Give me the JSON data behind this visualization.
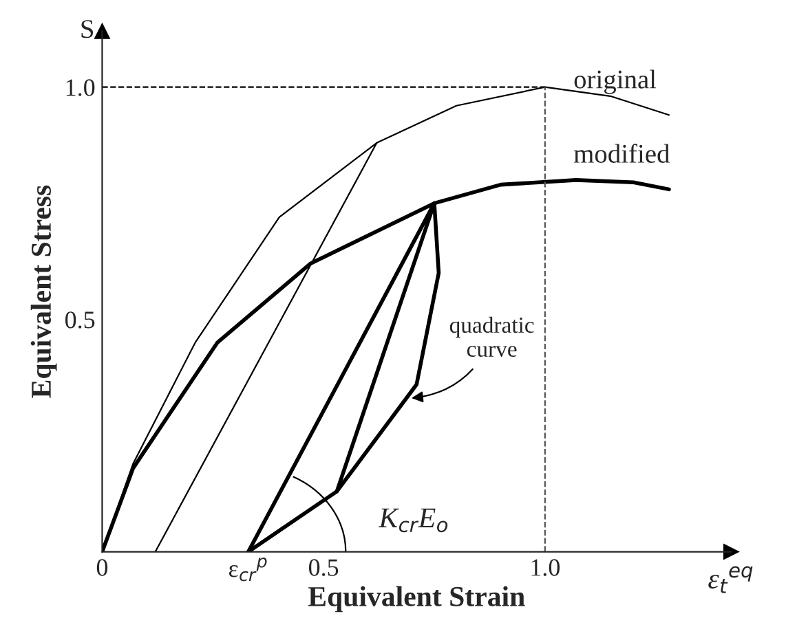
{
  "chart_data": {
    "type": "line",
    "xlabel": "Equivalent Strain",
    "ylabel": "Equivalent Stress",
    "xlim": [
      0,
      1.42
    ],
    "ylim": [
      0,
      1.12
    ],
    "xticks": [
      0,
      {
        "value": 0.33,
        "label": "ε$_{cr}$$^{p}$"
      },
      0.5,
      {
        "value": 1.0,
        "label": "1.0"
      }
    ],
    "yticks": [
      0.5,
      {
        "value": 1.0,
        "label": "1.0"
      }
    ],
    "line_style": "solid",
    "marker": "none",
    "grid": false,
    "series": [
      {
        "name": "original",
        "color": "#000000",
        "x": [
          0,
          0.07,
          0.21,
          0.4,
          0.62,
          0.8,
          1.0,
          1.15,
          1.28
        ],
        "values": [
          0,
          0.19,
          0.45,
          0.72,
          0.88,
          0.96,
          1.0,
          0.98,
          0.94
        ]
      },
      {
        "name": "modified",
        "color": "#000000",
        "x": [
          0,
          0.07,
          0.26,
          0.47,
          0.75,
          0.9,
          1.07,
          1.2,
          1.28
        ],
        "values": [
          0,
          0.18,
          0.45,
          0.62,
          0.75,
          0.79,
          0.8,
          0.795,
          0.78
        ]
      },
      {
        "color": "#000000",
        "x": [
          0.12,
          0.62
        ],
        "values": [
          0,
          0.88
        ]
      },
      {
        "color": "#000000",
        "x": [
          0.33,
          0.75
        ],
        "values": [
          0,
          0.75
        ]
      },
      {
        "color": "#000000",
        "x": [
          0.53,
          0.75
        ],
        "values": [
          0.13,
          0.75
        ]
      },
      {
        "color": "#000000",
        "x": [
          0.33,
          0.53,
          0.71,
          0.76,
          0.75
        ],
        "values": [
          0,
          0.13,
          0.36,
          0.6,
          0.75
        ]
      }
    ],
    "ref_lines": [
      {
        "axis": "y",
        "value": 1.0,
        "line_style": "dashed",
        "color": "#000000"
      },
      {
        "axis": "x",
        "value": 1.0,
        "line_style": "dashed",
        "color": "#555555"
      }
    ],
    "annotations": [
      "S",
      "ε$_{t}$$^{eq}$",
      "K$_{cr}$E$_{o}$",
      {
        "text": "quadratic\ncurve",
        "x": 0.69,
        "y": 0.33
      }
    ]
  }
}
